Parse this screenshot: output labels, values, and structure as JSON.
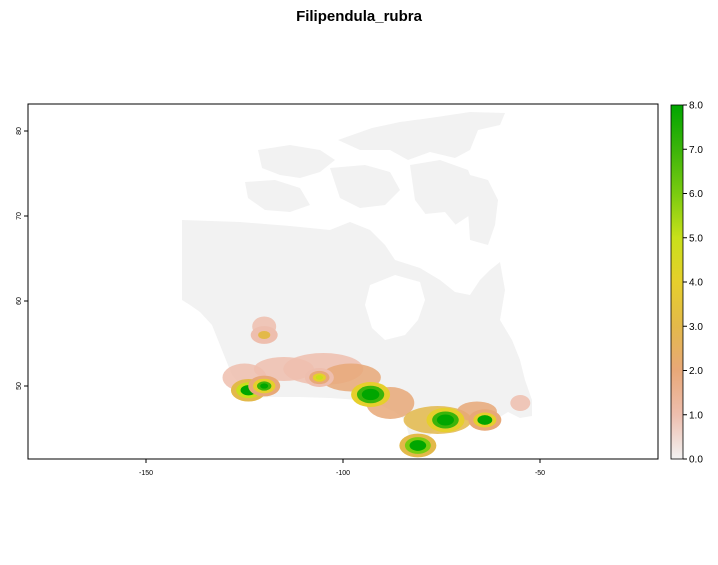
{
  "title": "Filipendula_rubra",
  "map": {
    "x_ticks": [
      "-150",
      "-100",
      "-50"
    ],
    "y_ticks": [
      "50",
      "60",
      "70",
      "80"
    ]
  },
  "legend": {
    "ticks": [
      "0.0",
      "1.0",
      "2.0",
      "3.0",
      "4.0",
      "5.0",
      "6.0",
      "7.0",
      "8.0"
    ],
    "colors": [
      "#f2f2f2",
      "#eebeae",
      "#e8a878",
      "#e3b94a",
      "#e6cf2c",
      "#c8e01a",
      "#7acb10",
      "#3bb40a",
      "#00a600"
    ]
  },
  "chart_data": {
    "type": "heatmap",
    "title": "Filipendula_rubra",
    "xlabel": "",
    "ylabel": "",
    "xlim": [
      -180,
      -25
    ],
    "ylim": [
      41,
      84
    ],
    "x_ticks": [
      -150,
      -100,
      -50
    ],
    "y_ticks": [
      50,
      60,
      70,
      80
    ],
    "value_range": [
      0,
      8
    ],
    "legend_ticks": [
      0,
      1,
      2,
      3,
      4,
      5,
      6,
      7,
      8
    ],
    "region": "Canada",
    "hotspots": [
      {
        "lon": -93,
        "lat": 49,
        "value": 7.5
      },
      {
        "lon": -74,
        "lat": 46,
        "value": 7.0
      },
      {
        "lon": -81,
        "lat": 43,
        "value": 6.5
      },
      {
        "lon": -124,
        "lat": 49.5,
        "value": 5.5
      },
      {
        "lon": -120,
        "lat": 50,
        "value": 4.0
      },
      {
        "lon": -64,
        "lat": 46,
        "value": 4.5
      },
      {
        "lon": -106,
        "lat": 51,
        "value": 2.5
      },
      {
        "lon": -120,
        "lat": 56,
        "value": 1.5
      }
    ]
  }
}
